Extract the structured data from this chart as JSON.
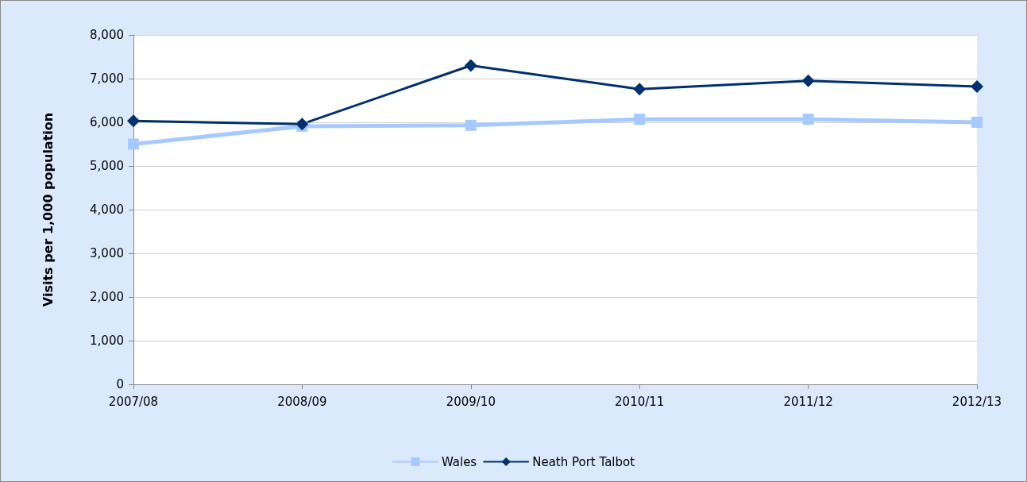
{
  "chart_data": {
    "type": "line",
    "ylabel": "Visits per 1,000 population",
    "categories": [
      "2007/08",
      "2008/09",
      "2009/10",
      "2010/11",
      "2011/12",
      "2012/13"
    ],
    "series": [
      {
        "name": "Wales",
        "color": "#a6caff",
        "marker": "square",
        "values": [
          5500,
          5910,
          5930,
          6070,
          6070,
          6000
        ]
      },
      {
        "name": "Neath Port Talbot",
        "color": "#00306e",
        "marker": "diamond",
        "values": [
          6030,
          5960,
          7300,
          6760,
          6950,
          6820
        ]
      }
    ],
    "ylim": [
      0,
      8000
    ],
    "yticks": [
      0,
      {
        "value": 1000,
        "label": "1,000"
      },
      {
        "value": 2000,
        "label": "2,000"
      },
      {
        "value": 3000,
        "label": "3,000"
      },
      {
        "value": 4000,
        "label": "4,000"
      },
      {
        "value": 5000,
        "label": "5,000"
      },
      {
        "value": 6000,
        "label": "6,000"
      },
      {
        "value": 7000,
        "label": "7,000"
      },
      {
        "value": 8000,
        "label": "8,000"
      }
    ],
    "grid": "y",
    "legend": "bottom",
    "line_style": "solid"
  }
}
